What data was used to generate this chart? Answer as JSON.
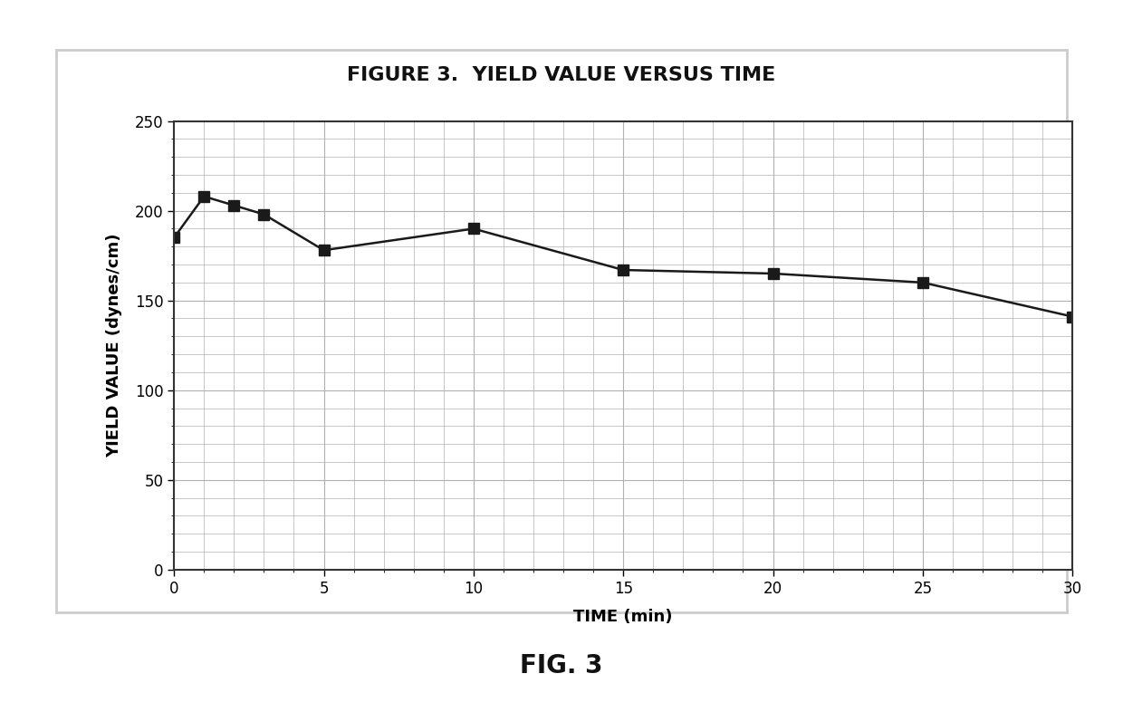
{
  "title": "FIGURE 3.  YIELD VALUE VERSUS TIME",
  "xlabel": "TIME (min)",
  "ylabel": "YIELD VALUE (dynes/cm)",
  "fig_label": "FIG. 3",
  "x": [
    0,
    1,
    2,
    3,
    5,
    10,
    15,
    20,
    25,
    30
  ],
  "y": [
    185,
    208,
    203,
    198,
    178,
    190,
    167,
    165,
    160,
    141
  ],
  "xlim": [
    0,
    30
  ],
  "ylim": [
    0,
    250
  ],
  "xticks": [
    0,
    5,
    10,
    15,
    20,
    25,
    30
  ],
  "yticks": [
    0,
    50,
    100,
    150,
    200,
    250
  ],
  "line_color": "#1a1a1a",
  "marker": "s",
  "marker_color": "#1a1a1a",
  "marker_size": 8,
  "line_width": 1.8,
  "grid_color": "#b0b0b0",
  "background_color": "#ffffff",
  "outer_box_color": "#cccccc",
  "title_fontsize": 16,
  "label_fontsize": 13,
  "tick_fontsize": 12,
  "fig_label_fontsize": 20
}
